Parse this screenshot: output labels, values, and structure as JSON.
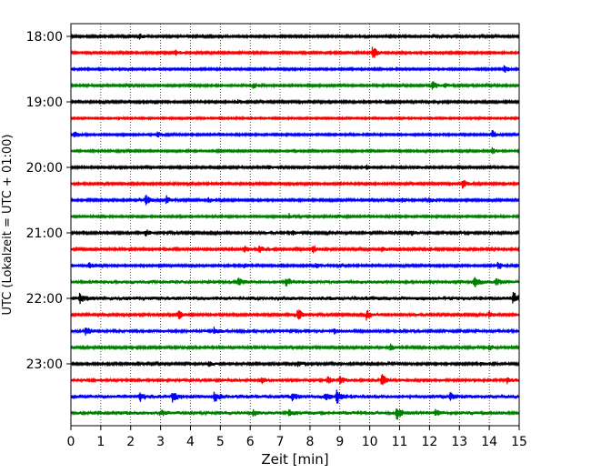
{
  "chart_data": {
    "type": "line",
    "title": "",
    "xlabel": "Zeit  [min]",
    "ylabel": "UTC (Lokalzeit = UTC + 01:00)",
    "xlim": [
      0,
      15
    ],
    "x_ticks": [
      0,
      1,
      2,
      3,
      4,
      5,
      6,
      7,
      8,
      9,
      10,
      11,
      12,
      13,
      14,
      15
    ],
    "x_tick_labels": [
      "0",
      "1",
      "2",
      "3",
      "4",
      "5",
      "6",
      "7",
      "8",
      "9",
      "10",
      "11",
      "12",
      "13",
      "14",
      "15"
    ],
    "y_tick_labels": [
      "18:00",
      "19:00",
      "20:00",
      "21:00",
      "22:00",
      "23:00"
    ],
    "x_grid": "dotted vertical lines at each minute",
    "trace_interval_minutes": 15,
    "trace_colors": [
      "#000000",
      "#ff0000",
      "#0000ff",
      "#008000"
    ],
    "traces": [
      {
        "start": "18:00",
        "color": "#000000",
        "amplitude": 0.22,
        "events": [
          [
            2.3,
            0.5
          ]
        ]
      },
      {
        "start": "18:15",
        "color": "#ff0000",
        "amplitude": 0.22,
        "events": [
          [
            3.5,
            0.5
          ],
          [
            10.1,
            1.3
          ]
        ]
      },
      {
        "start": "18:30",
        "color": "#0000ff",
        "amplitude": 0.2,
        "events": [
          [
            14.5,
            0.7
          ]
        ]
      },
      {
        "start": "18:45",
        "color": "#008000",
        "amplitude": 0.22,
        "events": [
          [
            6.1,
            0.6
          ],
          [
            12.1,
            0.9
          ],
          [
            12.5,
            0.5
          ]
        ]
      },
      {
        "start": "19:00",
        "color": "#000000",
        "amplitude": 0.22,
        "events": [
          [
            5.6,
            0.4
          ]
        ]
      },
      {
        "start": "19:15",
        "color": "#ff0000",
        "amplitude": 0.18,
        "events": [
          [
            1.6,
            0.3
          ]
        ]
      },
      {
        "start": "19:30",
        "color": "#0000ff",
        "amplitude": 0.2,
        "events": [
          [
            0.1,
            0.8
          ],
          [
            2.9,
            0.5
          ],
          [
            14.1,
            0.8
          ]
        ]
      },
      {
        "start": "19:45",
        "color": "#008000",
        "amplitude": 0.2,
        "events": [
          [
            14.1,
            0.6
          ]
        ]
      },
      {
        "start": "20:00",
        "color": "#000000",
        "amplitude": 0.22,
        "events": [
          [
            6.6,
            0.4
          ],
          [
            9.9,
            0.4
          ],
          [
            11.6,
            0.4
          ]
        ]
      },
      {
        "start": "20:15",
        "color": "#ff0000",
        "amplitude": 0.22,
        "events": [
          [
            13.1,
            1.0
          ]
        ]
      },
      {
        "start": "20:30",
        "color": "#0000ff",
        "amplitude": 0.22,
        "events": [
          [
            2.5,
            1.1
          ],
          [
            3.2,
            0.8
          ],
          [
            4.6,
            0.5
          ],
          [
            11.1,
            0.5
          ],
          [
            12.0,
            0.5
          ]
        ]
      },
      {
        "start": "20:45",
        "color": "#008000",
        "amplitude": 0.2,
        "events": [
          [
            7.3,
            0.5
          ],
          [
            8.9,
            0.4
          ]
        ]
      },
      {
        "start": "21:00",
        "color": "#000000",
        "amplitude": 0.25,
        "events": [
          [
            2.5,
            0.6
          ],
          [
            7.4,
            0.5
          ],
          [
            11.4,
            0.5
          ]
        ]
      },
      {
        "start": "21:15",
        "color": "#ff0000",
        "amplitude": 0.25,
        "events": [
          [
            5.8,
            0.7
          ],
          [
            6.3,
            0.6
          ],
          [
            8.1,
            0.8
          ],
          [
            10.4,
            0.4
          ]
        ]
      },
      {
        "start": "21:30",
        "color": "#0000ff",
        "amplitude": 0.22,
        "events": [
          [
            0.6,
            0.8
          ],
          [
            5.8,
            0.5
          ],
          [
            8.2,
            0.5
          ],
          [
            14.3,
            0.8
          ]
        ]
      },
      {
        "start": "21:45",
        "color": "#008000",
        "amplitude": 0.35,
        "events": [
          [
            5.6,
            0.6
          ],
          [
            7.2,
            0.8
          ],
          [
            13.5,
            1.0
          ],
          [
            14.2,
            0.6
          ]
        ]
      },
      {
        "start": "22:00",
        "color": "#000000",
        "amplitude": 0.4,
        "events": [
          [
            0.3,
            0.8
          ],
          [
            14.8,
            1.1
          ]
        ]
      },
      {
        "start": "22:15",
        "color": "#ff0000",
        "amplitude": 0.25,
        "events": [
          [
            3.6,
            0.9
          ],
          [
            7.6,
            1.2
          ],
          [
            9.9,
            1.0
          ],
          [
            14.0,
            0.6
          ]
        ]
      },
      {
        "start": "22:30",
        "color": "#0000ff",
        "amplitude": 0.3,
        "events": [
          [
            0.5,
            0.8
          ],
          [
            4.8,
            0.6
          ],
          [
            8.8,
            0.4
          ]
        ]
      },
      {
        "start": "22:45",
        "color": "#008000",
        "amplitude": 0.25,
        "events": [
          [
            10.7,
            0.6
          ],
          [
            14.0,
            0.5
          ]
        ]
      },
      {
        "start": "23:00",
        "color": "#000000",
        "amplitude": 0.25,
        "events": [
          [
            4.6,
            0.5
          ],
          [
            7.6,
            0.4
          ],
          [
            13.7,
            0.4
          ]
        ]
      },
      {
        "start": "23:15",
        "color": "#ff0000",
        "amplitude": 0.3,
        "events": [
          [
            6.4,
            0.5
          ],
          [
            8.6,
            0.6
          ],
          [
            9.0,
            0.7
          ],
          [
            10.4,
            1.4
          ],
          [
            14.6,
            0.5
          ]
        ]
      },
      {
        "start": "23:30",
        "color": "#0000ff",
        "amplitude": 0.4,
        "events": [
          [
            2.3,
            0.8
          ],
          [
            3.4,
            0.8
          ],
          [
            4.8,
            0.9
          ],
          [
            7.4,
            0.6
          ],
          [
            8.5,
            0.6
          ],
          [
            8.9,
            1.3
          ],
          [
            12.7,
            0.6
          ]
        ]
      },
      {
        "start": "23:45",
        "color": "#008000",
        "amplitude": 0.35,
        "events": [
          [
            3.0,
            0.6
          ],
          [
            6.1,
            0.6
          ],
          [
            7.3,
            0.6
          ],
          [
            10.9,
            1.2
          ],
          [
            12.2,
            0.6
          ]
        ]
      }
    ]
  }
}
